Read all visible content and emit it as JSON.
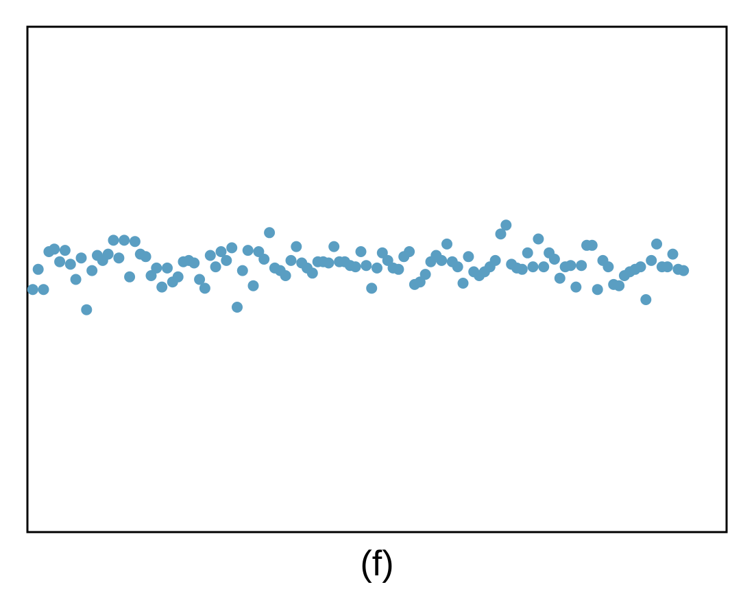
{
  "chart_data": {
    "type": "scatter",
    "title": "",
    "xlabel": "",
    "ylabel": "",
    "caption": "(f)",
    "xlim": [
      0,
      130
    ],
    "ylim": [
      -10,
      10
    ],
    "grid": false,
    "legend": "none",
    "point_color": "#5a9ec2",
    "series": [
      {
        "points": [
          {
            "x": 1,
            "y": -0.4
          },
          {
            "x": 2,
            "y": 0.4
          },
          {
            "x": 3,
            "y": -0.4
          },
          {
            "x": 4,
            "y": 1.1
          },
          {
            "x": 5,
            "y": 1.2
          },
          {
            "x": 6,
            "y": 0.7
          },
          {
            "x": 7,
            "y": 1.15
          },
          {
            "x": 8,
            "y": 0.6
          },
          {
            "x": 9,
            "y": 0.0
          },
          {
            "x": 10,
            "y": 0.85
          },
          {
            "x": 11,
            "y": -1.2
          },
          {
            "x": 12,
            "y": 0.35
          },
          {
            "x": 13,
            "y": 0.95
          },
          {
            "x": 14,
            "y": 0.75
          },
          {
            "x": 15,
            "y": 1.0
          },
          {
            "x": 16,
            "y": 1.55
          },
          {
            "x": 17,
            "y": 0.85
          },
          {
            "x": 18,
            "y": 1.55
          },
          {
            "x": 19,
            "y": 0.1
          },
          {
            "x": 20,
            "y": 1.5
          },
          {
            "x": 21,
            "y": 1.0
          },
          {
            "x": 22,
            "y": 0.9
          },
          {
            "x": 23,
            "y": 0.15
          },
          {
            "x": 24,
            "y": 0.45
          },
          {
            "x": 25,
            "y": -0.3
          },
          {
            "x": 26,
            "y": 0.45
          },
          {
            "x": 27,
            "y": -0.1
          },
          {
            "x": 28,
            "y": 0.1
          },
          {
            "x": 29,
            "y": 0.7
          },
          {
            "x": 30,
            "y": 0.75
          },
          {
            "x": 31,
            "y": 0.65
          },
          {
            "x": 32,
            "y": 0.0
          },
          {
            "x": 33,
            "y": -0.35
          },
          {
            "x": 34,
            "y": 0.95
          },
          {
            "x": 35,
            "y": 0.5
          },
          {
            "x": 36,
            "y": 1.1
          },
          {
            "x": 37,
            "y": 0.75
          },
          {
            "x": 38,
            "y": 1.25
          },
          {
            "x": 39,
            "y": -1.1
          },
          {
            "x": 40,
            "y": 0.35
          },
          {
            "x": 41,
            "y": 1.15
          },
          {
            "x": 42,
            "y": -0.25
          },
          {
            "x": 43,
            "y": 1.1
          },
          {
            "x": 44,
            "y": 0.8
          },
          {
            "x": 45,
            "y": 1.85
          },
          {
            "x": 46,
            "y": 0.45
          },
          {
            "x": 47,
            "y": 0.35
          },
          {
            "x": 48,
            "y": 0.15
          },
          {
            "x": 49,
            "y": 0.75
          },
          {
            "x": 50,
            "y": 1.3
          },
          {
            "x": 51,
            "y": 0.65
          },
          {
            "x": 52,
            "y": 0.45
          },
          {
            "x": 53,
            "y": 0.25
          },
          {
            "x": 54,
            "y": 0.7
          },
          {
            "x": 55,
            "y": 0.7
          },
          {
            "x": 56,
            "y": 0.65
          },
          {
            "x": 57,
            "y": 1.3
          },
          {
            "x": 58,
            "y": 0.7
          },
          {
            "x": 59,
            "y": 0.7
          },
          {
            "x": 60,
            "y": 0.55
          },
          {
            "x": 61,
            "y": 0.5
          },
          {
            "x": 62,
            "y": 1.1
          },
          {
            "x": 63,
            "y": 0.55
          },
          {
            "x": 64,
            "y": -0.35
          },
          {
            "x": 65,
            "y": 0.45
          },
          {
            "x": 66,
            "y": 1.05
          },
          {
            "x": 67,
            "y": 0.75
          },
          {
            "x": 68,
            "y": 0.45
          },
          {
            "x": 69,
            "y": 0.4
          },
          {
            "x": 70,
            "y": 0.9
          },
          {
            "x": 71,
            "y": 1.1
          },
          {
            "x": 72,
            "y": -0.2
          },
          {
            "x": 73,
            "y": -0.1
          },
          {
            "x": 74,
            "y": 0.2
          },
          {
            "x": 75,
            "y": 0.7
          },
          {
            "x": 76,
            "y": 0.95
          },
          {
            "x": 77,
            "y": 0.75
          },
          {
            "x": 78,
            "y": 1.4
          },
          {
            "x": 79,
            "y": 0.7
          },
          {
            "x": 80,
            "y": 0.5
          },
          {
            "x": 81,
            "y": -0.15
          },
          {
            "x": 82,
            "y": 0.9
          },
          {
            "x": 83,
            "y": 0.3
          },
          {
            "x": 84,
            "y": 0.15
          },
          {
            "x": 85,
            "y": 0.3
          },
          {
            "x": 86,
            "y": 0.5
          },
          {
            "x": 87,
            "y": 0.75
          },
          {
            "x": 88,
            "y": 1.8
          },
          {
            "x": 89,
            "y": 2.15
          },
          {
            "x": 90,
            "y": 0.6
          },
          {
            "x": 91,
            "y": 0.45
          },
          {
            "x": 92,
            "y": 0.4
          },
          {
            "x": 93,
            "y": 1.05
          },
          {
            "x": 94,
            "y": 0.5
          },
          {
            "x": 95,
            "y": 1.6
          },
          {
            "x": 96,
            "y": 0.5
          },
          {
            "x": 97,
            "y": 1.05
          },
          {
            "x": 98,
            "y": 0.8
          },
          {
            "x": 99,
            "y": 0.05
          },
          {
            "x": 100,
            "y": 0.5
          },
          {
            "x": 101,
            "y": 0.55
          },
          {
            "x": 102,
            "y": -0.3
          },
          {
            "x": 103,
            "y": 0.55
          },
          {
            "x": 104,
            "y": 1.35
          },
          {
            "x": 105,
            "y": 1.35
          },
          {
            "x": 106,
            "y": -0.4
          },
          {
            "x": 107,
            "y": 0.75
          },
          {
            "x": 108,
            "y": 0.5
          },
          {
            "x": 109,
            "y": -0.2
          },
          {
            "x": 110,
            "y": -0.25
          },
          {
            "x": 111,
            "y": 0.15
          },
          {
            "x": 112,
            "y": 0.3
          },
          {
            "x": 113,
            "y": 0.4
          },
          {
            "x": 114,
            "y": 0.5
          },
          {
            "x": 115,
            "y": -0.8
          },
          {
            "x": 116,
            "y": 0.75
          },
          {
            "x": 117,
            "y": 1.4
          },
          {
            "x": 118,
            "y": 0.5
          },
          {
            "x": 119,
            "y": 0.5
          },
          {
            "x": 120,
            "y": 1.0
          },
          {
            "x": 121,
            "y": 0.4
          },
          {
            "x": 122,
            "y": 0.35
          }
        ]
      }
    ]
  }
}
